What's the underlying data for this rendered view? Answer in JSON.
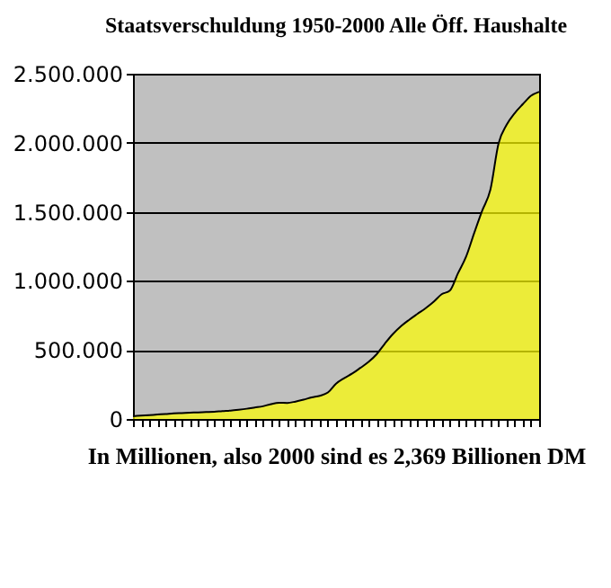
{
  "chart_data": {
    "type": "area",
    "title": "Staatsverschuldung 1950-2000 Alle Öff. Haushalte",
    "xlabel": "In Millionen, also 2000 sind es 2,369 Billionen DM",
    "categories": [
      null,
      null,
      null,
      null,
      null,
      null,
      null,
      null,
      null,
      null,
      null,
      null,
      null,
      null,
      null,
      null,
      null,
      null,
      null,
      null,
      null,
      null,
      null,
      null,
      null,
      null,
      null,
      null,
      null,
      null,
      null,
      null,
      null,
      null,
      null,
      null,
      null,
      null,
      null,
      null,
      null,
      null,
      null,
      null,
      null,
      null,
      null,
      null,
      null,
      null,
      null
    ],
    "series": [
      {
        "color": "#ffff00",
        "values": [
          20000,
          24000,
          28000,
          32000,
          36000,
          41000,
          43000,
          45000,
          48000,
          50000,
          52000,
          57000,
          61000,
          67000,
          74000,
          83000,
          92000,
          108000,
          117000,
          116000,
          126000,
          140000,
          156000,
          168000,
          192000,
          256000,
          296000,
          329000,
          370000,
          413000,
          469000,
          545000,
          615000,
          672000,
          718000,
          760000,
          801000,
          848000,
          903000,
          929000,
          1054000,
          1174000,
          1345000,
          1509000,
          1660000,
          1994000,
          2130000,
          2215000,
          2280000,
          2340000,
          2369000
        ]
      }
    ],
    "ylim": [
      0,
      2500000
    ],
    "yticks": [
      0,
      {
        "value": 500000,
        "label": "500.000"
      },
      {
        "value": 1000000,
        "label": "1.000.000"
      },
      {
        "value": 1500000,
        "label": "1.500.000"
      },
      {
        "value": 2000000,
        "label": "2.000.000"
      },
      {
        "value": 2500000,
        "label": "2.500.000"
      }
    ],
    "grid": "y"
  }
}
